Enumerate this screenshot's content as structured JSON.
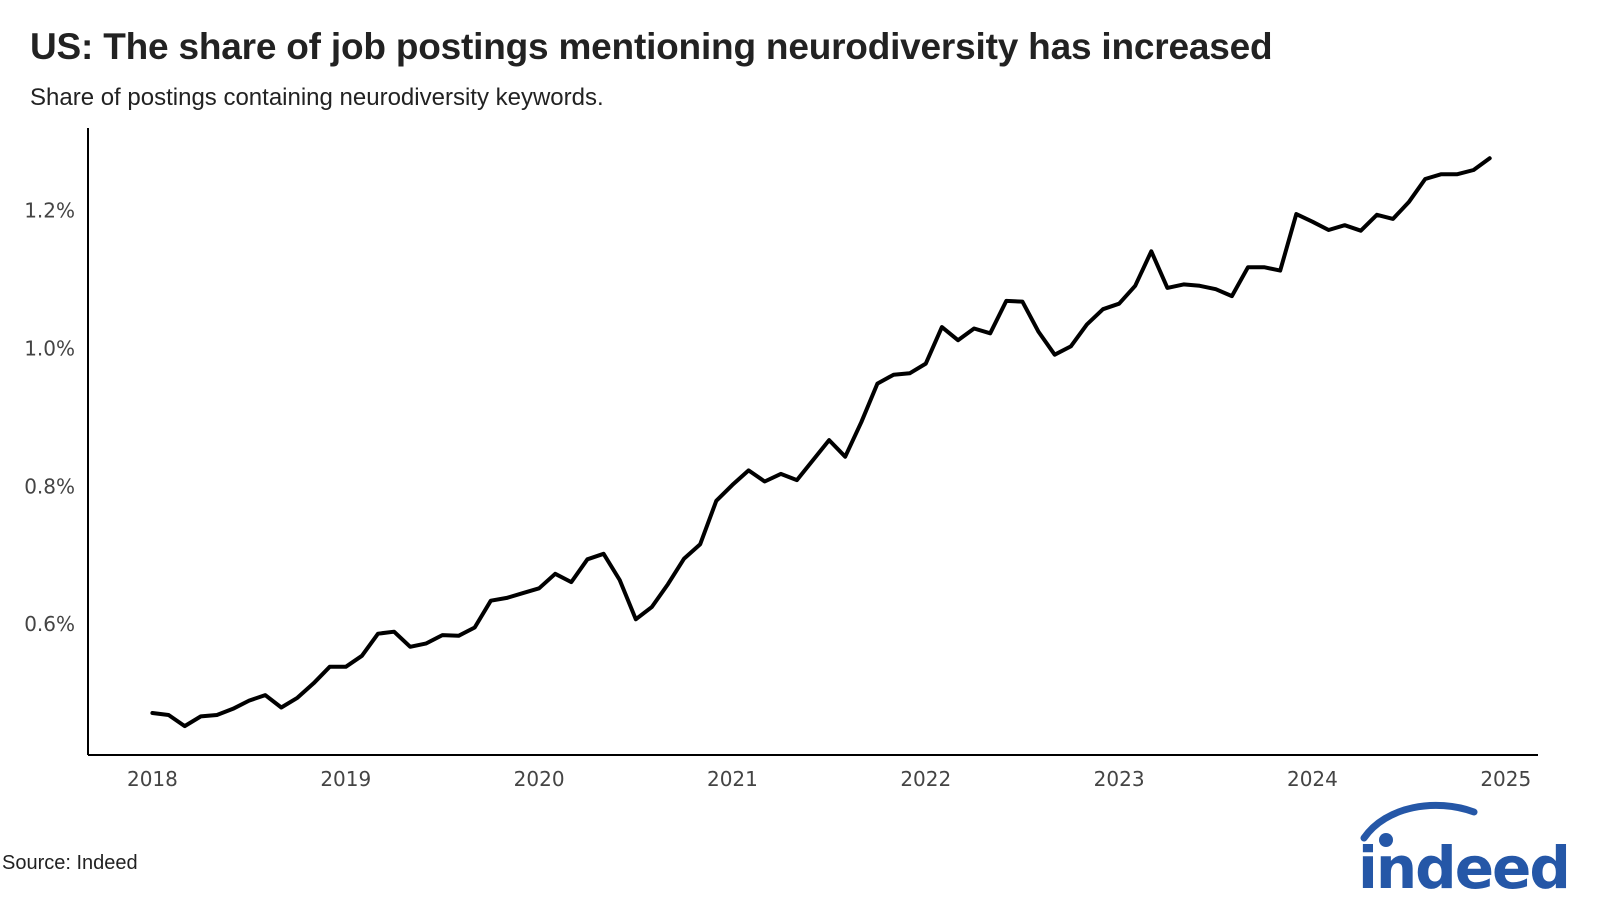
{
  "title": "US: The share of job postings mentioning neurodiversity has increased",
  "subtitle": "Share of postings containing neurodiversity keywords.",
  "source": "Source: Indeed",
  "logo_text": "indeed",
  "colors": {
    "line": "#000000",
    "axis": "#000000",
    "logo": "#2557a7",
    "text": "#222222"
  },
  "chart_data": {
    "type": "line",
    "title": "US: The share of job postings mentioning neurodiversity has increased",
    "subtitle": "Share of postings containing neurodiversity keywords.",
    "xlabel": "",
    "ylabel": "",
    "x_ticks": [
      "2018",
      "2019",
      "2020",
      "2021",
      "2022",
      "2023",
      "2024",
      "2025"
    ],
    "y_ticks": [
      "0.6%",
      "0.8%",
      "1.0%",
      "1.2%"
    ],
    "y_tick_values": [
      0.6,
      0.8,
      1.0,
      1.2
    ],
    "xlim": [
      "2017-09",
      "2025-03"
    ],
    "ylim": [
      0.41,
      1.32
    ],
    "grid": false,
    "legend": "none",
    "series": [
      {
        "x": [
          "2018-01",
          "2018-02",
          "2018-03",
          "2018-04",
          "2018-05",
          "2018-06",
          "2018-07",
          "2018-08",
          "2018-09",
          "2018-10",
          "2018-11",
          "2018-12",
          "2019-01",
          "2019-02",
          "2019-03",
          "2019-04",
          "2019-05",
          "2019-06",
          "2019-07",
          "2019-08",
          "2019-09",
          "2019-10",
          "2019-11",
          "2019-12",
          "2020-01",
          "2020-02",
          "2020-03",
          "2020-04",
          "2020-05",
          "2020-06",
          "2020-07",
          "2020-08",
          "2020-09",
          "2020-10",
          "2020-11",
          "2020-12",
          "2021-01",
          "2021-02",
          "2021-03",
          "2021-04",
          "2021-05",
          "2021-06",
          "2021-07",
          "2021-08",
          "2021-09",
          "2021-10",
          "2021-11",
          "2021-12",
          "2022-01",
          "2022-02",
          "2022-03",
          "2022-04",
          "2022-05",
          "2022-06",
          "2022-07",
          "2022-08",
          "2022-09",
          "2022-10",
          "2022-11",
          "2022-12",
          "2023-01",
          "2023-02",
          "2023-03",
          "2023-04",
          "2023-05",
          "2023-06",
          "2023-07",
          "2023-08",
          "2023-09",
          "2023-10",
          "2023-11",
          "2023-12",
          "2024-01",
          "2024-02",
          "2024-03",
          "2024-04",
          "2024-05",
          "2024-06",
          "2024-07",
          "2024-08",
          "2024-09",
          "2024-10",
          "2024-11",
          "2024-12"
        ],
        "values": [
          0.471,
          0.468,
          0.452,
          0.466,
          0.468,
          0.477,
          0.489,
          0.497,
          0.479,
          0.493,
          0.514,
          0.538,
          0.538,
          0.554,
          0.586,
          0.589,
          0.567,
          0.572,
          0.584,
          0.583,
          0.595,
          0.634,
          0.638,
          0.645,
          0.652,
          0.673,
          0.661,
          0.694,
          0.702,
          0.664,
          0.607,
          0.625,
          0.658,
          0.695,
          0.716,
          0.779,
          0.802,
          0.823,
          0.807,
          0.818,
          0.809,
          0.838,
          0.867,
          0.843,
          0.893,
          0.949,
          0.962,
          0.964,
          0.978,
          1.031,
          1.012,
          1.029,
          1.022,
          1.069,
          1.068,
          1.024,
          0.991,
          1.003,
          1.035,
          1.057,
          1.065,
          1.091,
          1.141,
          1.088,
          1.093,
          1.091,
          1.086,
          1.076,
          1.118,
          1.118,
          1.113,
          1.195,
          1.184,
          1.172,
          1.179,
          1.171,
          1.194,
          1.188,
          1.213,
          1.246,
          1.253,
          1.253,
          1.259,
          1.276
        ]
      }
    ]
  }
}
